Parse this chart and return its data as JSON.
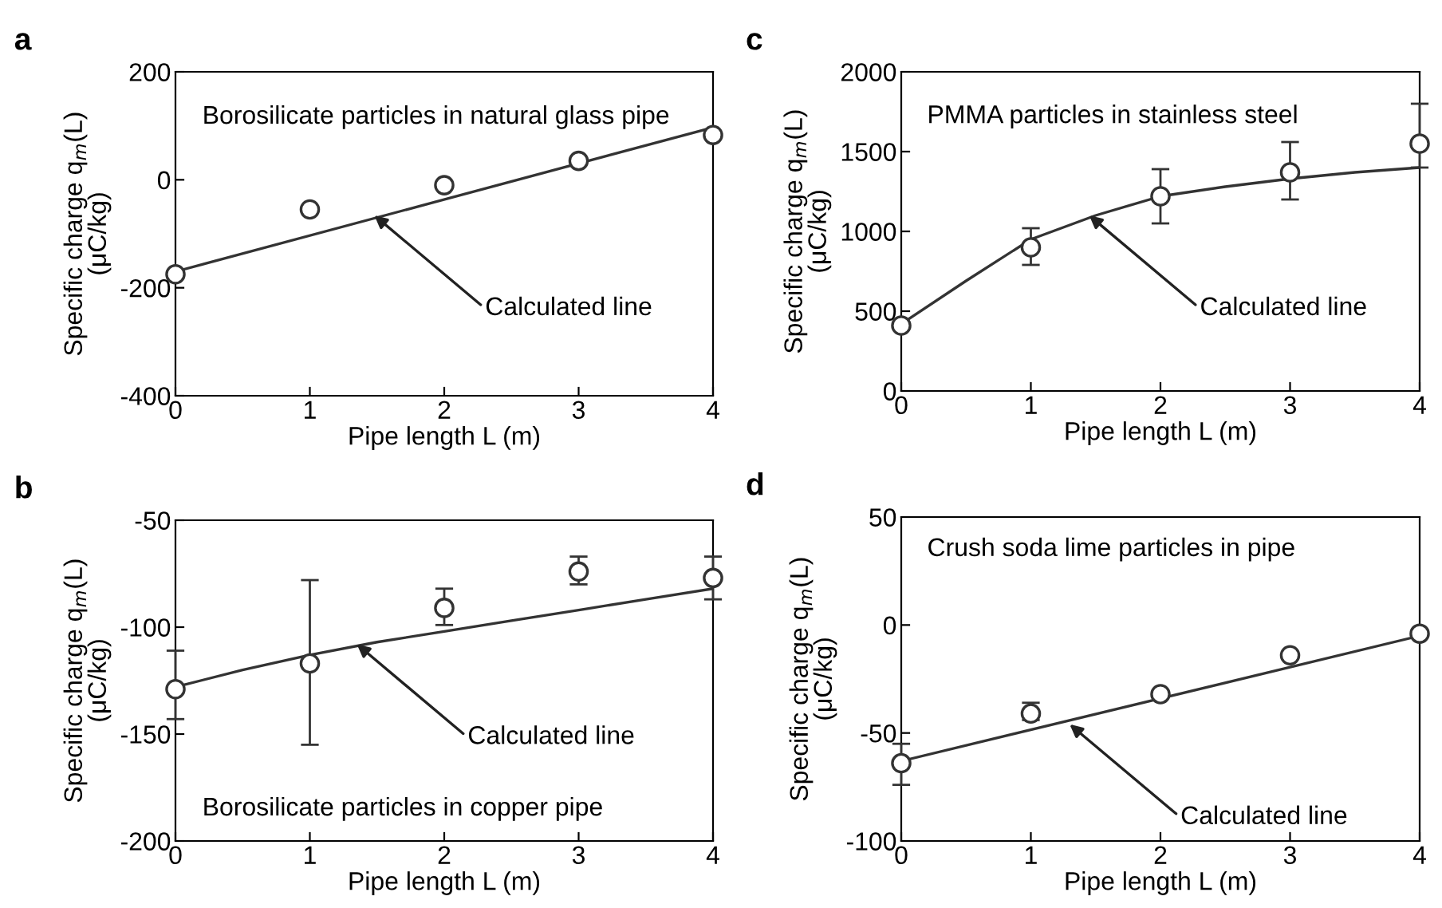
{
  "chart_data": [
    {
      "type": "scatter",
      "title": "a",
      "xlabel": "Pipe length L (m)",
      "ylabel": "Specific charge q$_{m}$(L)\n(μC/kg)",
      "xlim": [
        0,
        4
      ],
      "xticks": [
        0,
        1,
        2,
        3,
        4
      ],
      "ylim": [
        -400,
        200
      ],
      "yticks": [
        -400,
        -200,
        0,
        200
      ],
      "marker": "circle",
      "grid": false,
      "legend": false,
      "annotations": [
        "Borosilicate particles in natural glass pipe",
        {
          "text": "Calculated line",
          "x": 1.48,
          "y": -66
        }
      ],
      "series": [
        {
          "color": "#333333",
          "x": [
            0,
            1,
            2,
            3,
            4
          ],
          "values": [
            -175,
            -55,
            -10,
            35,
            83
          ]
        },
        {
          "type": "line",
          "marker": "none",
          "color": "#333333",
          "x": [
            0,
            4
          ],
          "values": [
            -170,
            97
          ]
        }
      ]
    },
    {
      "type": "scatter",
      "title": "c",
      "xlabel": "Pipe length L (m)",
      "ylabel": "Specific charge q$_{m}$(L)\n(μC/kg)",
      "xlim": [
        0,
        4
      ],
      "xticks": [
        0,
        1,
        2,
        3,
        4
      ],
      "ylim": [
        0,
        2000
      ],
      "yticks": [
        0,
        500,
        1000,
        1500,
        2000
      ],
      "marker": "circle",
      "grid": false,
      "legend": false,
      "annotations": [
        "PMMA particles in stainless steel",
        {
          "text": "Calculated line",
          "x": 1.45,
          "y": 1100
        }
      ],
      "series": [
        {
          "color": "#333333",
          "x": [
            0,
            1,
            2,
            3,
            4
          ],
          "values": [
            410,
            900,
            1220,
            1370,
            1550
          ],
          "errors": [
            null,
            [
              790,
              1020
            ],
            [
              1050,
              1390
            ],
            [
              1200,
              1560
            ],
            [
              1400,
              1800
            ]
          ]
        },
        {
          "type": "line",
          "marker": "none",
          "color": "#333333",
          "x": [
            0,
            0.5,
            1,
            1.5,
            2,
            2.5,
            3,
            3.5,
            4
          ],
          "values": [
            420,
            690,
            950,
            1100,
            1220,
            1280,
            1330,
            1370,
            1400
          ]
        }
      ]
    },
    {
      "type": "scatter",
      "title": "b",
      "xlabel": "Pipe length L (m)",
      "ylabel": "Specific charge q$_{m}$(L)\n(μC/kg)",
      "xlim": [
        0,
        4
      ],
      "xticks": [
        0,
        1,
        2,
        3,
        4
      ],
      "ylim": [
        -200,
        -50
      ],
      "yticks": [
        -200,
        -150,
        -100,
        -50
      ],
      "marker": "circle",
      "grid": false,
      "legend": false,
      "annotations": [
        "Borosilicate particles in copper pipe",
        {
          "text": "Calculated line",
          "x": 1.35,
          "y": -108
        }
      ],
      "series": [
        {
          "color": "#333333",
          "x": [
            0,
            1,
            2,
            3,
            4
          ],
          "values": [
            -129,
            -117,
            -91,
            -74,
            -77
          ],
          "errors": [
            [
              -143,
              -111
            ],
            [
              -155,
              -78
            ],
            [
              -99,
              -82
            ],
            [
              -80,
              -67
            ],
            [
              -87,
              -67
            ]
          ]
        },
        {
          "type": "line",
          "marker": "none",
          "color": "#333333",
          "x": [
            0,
            0.5,
            1,
            1.5,
            2,
            2.5,
            3,
            3.5,
            4
          ],
          "values": [
            -128,
            -120,
            -113,
            -107,
            -102,
            -97,
            -92,
            -87,
            -82
          ]
        }
      ]
    },
    {
      "type": "scatter",
      "title": "d",
      "xlabel": "Pipe length L (m)",
      "ylabel": "Specific charge q$_{m}$(L)\n(μC/kg)",
      "xlim": [
        0,
        4
      ],
      "xticks": [
        0,
        1,
        2,
        3,
        4
      ],
      "ylim": [
        -100,
        50
      ],
      "yticks": [
        -100,
        -50,
        0,
        50
      ],
      "marker": "circle",
      "grid": false,
      "legend": false,
      "annotations": [
        "Crush soda lime particles in pipe",
        {
          "text": "Calculated line",
          "x": 1.3,
          "y": -46
        }
      ],
      "series": [
        {
          "color": "#333333",
          "x": [
            0,
            1,
            2,
            3,
            4
          ],
          "values": [
            -64,
            -41,
            -32,
            -14,
            -4
          ],
          "errors": [
            [
              -74,
              -55
            ],
            [
              -44,
              -36
            ],
            null,
            null,
            null
          ]
        },
        {
          "type": "line",
          "marker": "none",
          "color": "#333333",
          "x": [
            0,
            4
          ],
          "values": [
            -63,
            -5
          ]
        }
      ]
    }
  ]
}
